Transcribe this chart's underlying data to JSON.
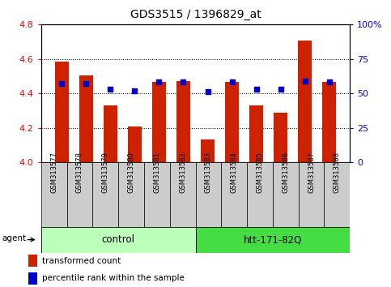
{
  "title": "GDS3515 / 1396829_at",
  "samples": [
    "GSM313577",
    "GSM313578",
    "GSM313579",
    "GSM313580",
    "GSM313581",
    "GSM313582",
    "GSM313583",
    "GSM313584",
    "GSM313585",
    "GSM313586",
    "GSM313587",
    "GSM313588"
  ],
  "red_values": [
    4.585,
    4.505,
    4.33,
    4.205,
    4.465,
    4.47,
    4.13,
    4.465,
    4.33,
    4.285,
    4.705,
    4.465
  ],
  "blue_percentiles": [
    57,
    57,
    53,
    52,
    58,
    58,
    51,
    58,
    53,
    53,
    59,
    58
  ],
  "ylim_left": [
    4.0,
    4.8
  ],
  "ylim_right": [
    0,
    100
  ],
  "yticks_left": [
    4.0,
    4.2,
    4.4,
    4.6,
    4.8
  ],
  "yticks_right": [
    0,
    25,
    50,
    75,
    100
  ],
  "ytick_labels_right": [
    "0",
    "25",
    "50",
    "75",
    "100%"
  ],
  "groups": [
    {
      "label": "control",
      "start": 0,
      "end": 5,
      "color": "#bbffbb"
    },
    {
      "label": "htt-171-82Q",
      "start": 6,
      "end": 11,
      "color": "#44dd44"
    }
  ],
  "agent_label": "agent",
  "bar_color": "#cc2200",
  "dot_color": "#0000cc",
  "bar_width": 0.55,
  "cell_bg": "#cccccc",
  "plot_bg": "white",
  "legend_items": [
    {
      "color": "#cc2200",
      "label": "transformed count"
    },
    {
      "color": "#0000cc",
      "label": "percentile rank within the sample"
    }
  ]
}
